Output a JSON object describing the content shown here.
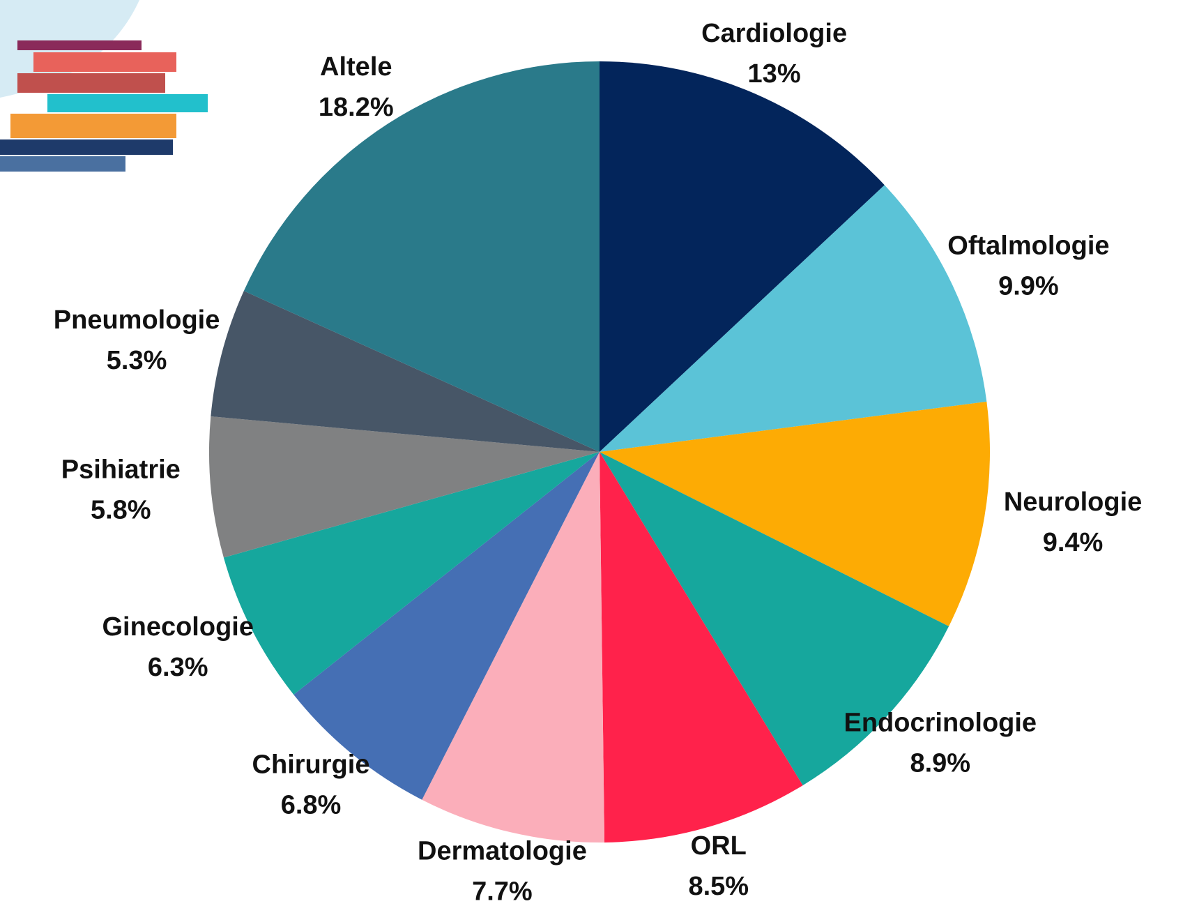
{
  "chart_data": {
    "type": "pie",
    "categories": [
      "Cardiologie",
      "Oftalmologie",
      "Neurologie",
      "Endocrinologie",
      "ORL",
      "Dermatologie",
      "Chirurgie",
      "Ginecologie",
      "Psihiatrie",
      "Pneumologie",
      "Altele"
    ],
    "values": [
      13,
      9.9,
      9.4,
      8.9,
      8.5,
      7.7,
      6.8,
      6.3,
      5.8,
      5.3,
      18.2
    ],
    "value_labels": [
      "13%",
      "9.9%",
      "9.4%",
      "8.9%",
      "8.5%",
      "7.7%",
      "6.8%",
      "6.3%",
      "5.8%",
      "5.3%",
      "18.2%"
    ],
    "colors": [
      "#03255b",
      "#5bc3d7",
      "#fdab04",
      "#16a79d",
      "#ff224b",
      "#fbaeba",
      "#456fb4",
      "#16a79d",
      "#808182",
      "#475667",
      "#2a7a8a"
    ]
  }
}
